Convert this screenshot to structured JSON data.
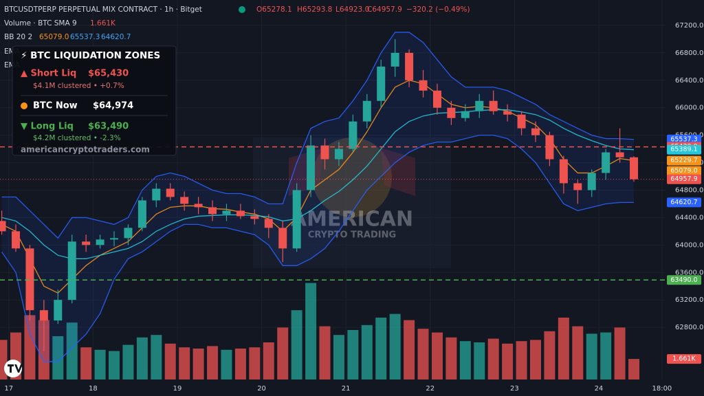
{
  "header": {
    "title": "BTCUSDTPERP PERPETUAL MIX CONTRACT · 1h · Bitget",
    "ohlc": [
      "O65278.1",
      "H65293.8",
      "L64923.0",
      "C64957.9",
      "−320.2 (−0.49%)"
    ],
    "volume_name": "Volume · BTC SMA 9",
    "volume_value": "1.661K",
    "bb_name": "BB 20 2",
    "bb_values": [
      "65079.0",
      "65537.3",
      "64620.7"
    ],
    "ema_rows": [
      "EMA",
      "EMA"
    ]
  },
  "overlay": {
    "title": "⚡ BTC LIQUIDATION ZONES",
    "short_label": "▲ Short Liq",
    "short_value": "$65,430",
    "short_note": "$4.1M clustered  •  +0.7%",
    "now_label": "BTC Now",
    "now_value": "$64,974",
    "long_label": "▼ Long Liq",
    "long_value": "$63,490",
    "long_note": "$4.2M clustered  •  -2.3%",
    "site": "americancryptotraders.com"
  },
  "watermark": [
    "AMERICAN",
    "CRYPTO TRADING"
  ],
  "chart_data": {
    "type": "candlestick",
    "up_color": "#26a69a",
    "down_color": "#ef5350",
    "x": [
      -2,
      2,
      6,
      10,
      14,
      18,
      22,
      26,
      30,
      34,
      38,
      42,
      46,
      50,
      54,
      58,
      62,
      66,
      70,
      74,
      78,
      82,
      86,
      90,
      94,
      98,
      102,
      106,
      110,
      114,
      118,
      122,
      126,
      130,
      134,
      138,
      142,
      146,
      150,
      154,
      158,
      162,
      166,
      170,
      174,
      178
    ],
    "open": [
      64350,
      64200,
      63950,
      63050,
      62900,
      63200,
      64050,
      64000,
      64080,
      64100,
      64250,
      64650,
      64820,
      64700,
      64600,
      64550,
      64450,
      64500,
      64420,
      64380,
      64250,
      63950,
      64800,
      65450,
      65250,
      65400,
      65800,
      66100,
      66600,
      66800,
      66400,
      66250,
      66000,
      65850,
      65950,
      66100,
      65950,
      65900,
      65700,
      65600,
      65250,
      64900,
      64800,
      65050,
      65350,
      65278.1
    ],
    "high": [
      64500,
      64300,
      64000,
      63200,
      63350,
      64150,
      64150,
      64150,
      64200,
      64300,
      64700,
      64900,
      64900,
      64780,
      64700,
      64650,
      64600,
      64600,
      64520,
      64450,
      64350,
      64900,
      65600,
      65550,
      65500,
      65900,
      66200,
      66700,
      67000,
      66850,
      66550,
      66350,
      66100,
      66050,
      66200,
      66250,
      66050,
      65950,
      65800,
      65650,
      65300,
      64950,
      65100,
      65400,
      65700,
      65293.8
    ],
    "low": [
      64150,
      63900,
      62900,
      62450,
      62850,
      63150,
      63900,
      63950,
      63980,
      64000,
      64200,
      64550,
      64650,
      64500,
      64450,
      64350,
      64350,
      64380,
      64300,
      64100,
      63750,
      63900,
      64700,
      65100,
      65150,
      65350,
      65700,
      66000,
      66450,
      66300,
      66150,
      65900,
      65750,
      65800,
      65850,
      65900,
      65800,
      65600,
      65500,
      65150,
      64750,
      64600,
      64700,
      64950,
      65200,
      64923.0
    ],
    "close": [
      64200,
      63950,
      63050,
      62900,
      63200,
      64050,
      64000,
      64080,
      64100,
      64250,
      64650,
      64820,
      64700,
      64600,
      64550,
      64450,
      64500,
      64420,
      64380,
      64250,
      63950,
      64800,
      65450,
      65250,
      65400,
      65800,
      66100,
      66600,
      66800,
      66400,
      66250,
      66000,
      65850,
      65950,
      66100,
      65950,
      65900,
      65700,
      65600,
      65250,
      64900,
      64800,
      65050,
      65350,
      65278.1,
      64957.9
    ],
    "volume": [
      3200,
      3800,
      5200,
      4800,
      3500,
      4600,
      2600,
      2400,
      2300,
      2800,
      3400,
      3600,
      2900,
      2600,
      2500,
      2700,
      2400,
      2500,
      2600,
      3000,
      4200,
      5600,
      7800,
      4300,
      3600,
      4000,
      4400,
      5000,
      5300,
      4800,
      4100,
      3800,
      3400,
      3100,
      3000,
      3300,
      2900,
      3100,
      3200,
      3900,
      5000,
      4300,
      3700,
      3800,
      4200,
      1661
    ],
    "volume_lim": [
      0,
      10000
    ],
    "lines": [
      {
        "name": "bb_upper",
        "color": "#2962ff",
        "values": [
          64700,
          64700,
          64500,
          64300,
          64100,
          64400,
          64400,
          64350,
          64300,
          64400,
          64800,
          65000,
          65050,
          65000,
          64900,
          64800,
          64750,
          64750,
          64700,
          64600,
          64600,
          65200,
          65700,
          65800,
          65850,
          66100,
          66400,
          66800,
          67100,
          67100,
          66950,
          66700,
          66450,
          66300,
          66300,
          66300,
          66250,
          66150,
          66050,
          65900,
          65800,
          65700,
          65600,
          65550,
          65550,
          65537.3
        ]
      },
      {
        "name": "bb_lower",
        "color": "#2962ff",
        "values": [
          63900,
          63600,
          62700,
          62300,
          62300,
          62500,
          62700,
          63000,
          63500,
          63800,
          63900,
          64050,
          64200,
          64300,
          64300,
          64250,
          64250,
          64200,
          64150,
          64000,
          63700,
          63700,
          63800,
          63950,
          64200,
          64500,
          64800,
          65000,
          65200,
          65350,
          65450,
          65500,
          65500,
          65550,
          65600,
          65600,
          65550,
          65400,
          65200,
          64900,
          64600,
          64500,
          64550,
          64600,
          64620,
          64620.7
        ]
      },
      {
        "name": "ema_fast",
        "color": "#f7931a",
        "values": [
          64300,
          64200,
          63800,
          63400,
          63300,
          63500,
          63700,
          63850,
          63950,
          64050,
          64250,
          64450,
          64550,
          64570,
          64570,
          64530,
          64520,
          64480,
          64450,
          64380,
          64200,
          64400,
          64800,
          64950,
          65100,
          65350,
          65650,
          66000,
          66300,
          66400,
          66350,
          66200,
          66050,
          66000,
          66020,
          66000,
          65950,
          65850,
          65750,
          65550,
          65250,
          65050,
          65050,
          65150,
          65260,
          65229.7
        ]
      },
      {
        "name": "ema_slow",
        "color": "#26c6da",
        "values": [
          64400,
          64350,
          64200,
          64000,
          63850,
          63800,
          63800,
          63850,
          63900,
          63950,
          64050,
          64200,
          64300,
          64380,
          64420,
          64430,
          64440,
          64440,
          64430,
          64410,
          64350,
          64380,
          64500,
          64650,
          64780,
          64950,
          65150,
          65400,
          65650,
          65800,
          65880,
          65920,
          65930,
          65940,
          65960,
          65970,
          65970,
          65940,
          65900,
          65820,
          65700,
          65600,
          65520,
          65450,
          65400,
          65389.1
        ]
      }
    ],
    "xlim": [
      -2.5,
      187
    ],
    "ylim": [
      62040,
      67570
    ],
    "xticks": [
      {
        "value": 0,
        "label": "17"
      },
      {
        "value": 24,
        "label": "18"
      },
      {
        "value": 48,
        "label": "19"
      },
      {
        "value": 72,
        "label": "20"
      },
      {
        "value": 96,
        "label": "21"
      },
      {
        "value": 120,
        "label": "22"
      },
      {
        "value": 144,
        "label": "23"
      },
      {
        "value": 168,
        "label": "24"
      },
      {
        "value": 186,
        "label": "18:00"
      }
    ],
    "yticks": [
      {
        "value": 62800,
        "label": "62800.0"
      },
      {
        "value": 63200,
        "label": "63200.0"
      },
      {
        "value": 63600,
        "label": "63600.0"
      },
      {
        "value": 64000,
        "label": "64000.0"
      },
      {
        "value": 64400,
        "label": "64400.0"
      },
      {
        "value": 64800,
        "label": "64800.0"
      },
      {
        "value": 65200,
        "label": "65200.0"
      },
      {
        "value": 65600,
        "label": "65600.0"
      },
      {
        "value": 66000,
        "label": "66000.0"
      },
      {
        "value": 66400,
        "label": "66400.0"
      },
      {
        "value": 66800,
        "label": "66800.0"
      },
      {
        "value": 67200,
        "label": "67200.0"
      }
    ],
    "grid": true,
    "price_labels": [
      {
        "value": 65537.3,
        "label": "65537.3",
        "color": "#2962ff"
      },
      {
        "value": 65430,
        "label": "65430.0",
        "color": "#ef5350",
        "line": "dashed"
      },
      {
        "value": 65389.1,
        "label": "65389.1",
        "color": "#26c6da"
      },
      {
        "value": 65229.7,
        "label": "65229.7",
        "color": "#f7931a"
      },
      {
        "value": 65079,
        "label": "65079.0",
        "color": "#f7931a"
      },
      {
        "value": 64957.9,
        "label": "64957.9",
        "color": "#ef5350",
        "line": "dotted"
      },
      {
        "value": 64620.7,
        "label": "64620.7",
        "color": "#2962ff"
      },
      {
        "value": 63490,
        "label": "63490.0",
        "color": "#4caf50",
        "line": "dashed"
      }
    ],
    "volume_label": {
      "value": 1661,
      "label": "1.661K",
      "color": "#ef5350"
    }
  }
}
